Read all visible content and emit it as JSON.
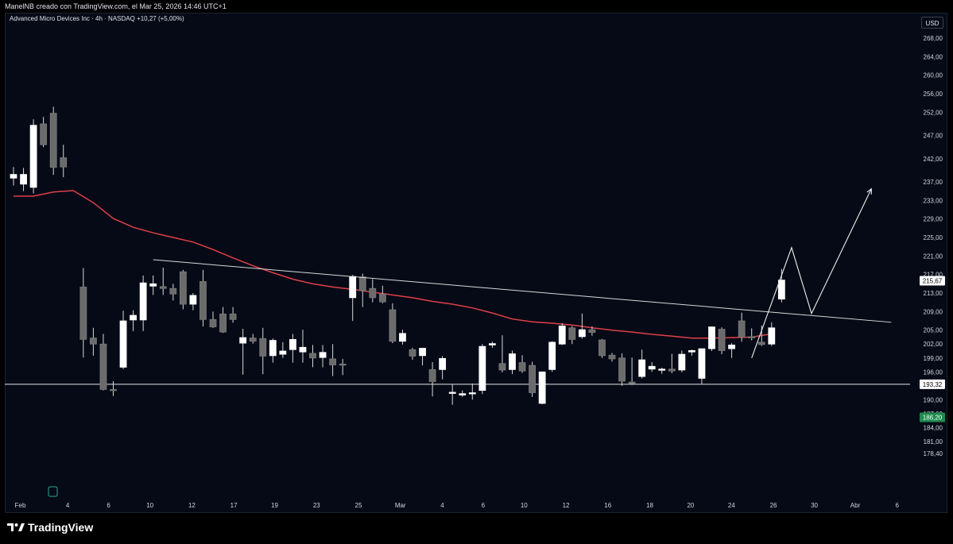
{
  "header": {
    "attribution": "ManelNB creado con TradingView.com, el Mar 25, 2026 14:46 UTC+1",
    "symbol_info": "Advanced Micro Devices Inc · 4h · NASDAQ  +10,27 (+5,00%)",
    "currency": "USD"
  },
  "footer": {
    "brand": "TradingView"
  },
  "colors": {
    "background": "#050a16",
    "bull_body": "#ffffff",
    "bear_body": "#6b6b6b",
    "moving_average": "#e0404a",
    "trendline": "#d9d9d9",
    "price_badge": "#ffffff",
    "last_price_badge": "#1f8a4c"
  },
  "chart_data": {
    "type": "candlestick",
    "y_axis": {
      "ticks": [
        "268,00",
        "264,00",
        "260,00",
        "256,00",
        "252,00",
        "247,00",
        "242,00",
        "237,00",
        "233,00",
        "229,00",
        "225,00",
        "221,00",
        "217,00",
        "213,00",
        "209,00",
        "205,00",
        "202,00",
        "199,00",
        "196,00",
        "193,00",
        "190,00",
        "187,00",
        "184,00",
        "181,00",
        "178,40"
      ],
      "tick_values": [
        268,
        264,
        260,
        256,
        252,
        247,
        242,
        237,
        233,
        229,
        225,
        221,
        217,
        213,
        209,
        205,
        202,
        199,
        196,
        193,
        190,
        187,
        184,
        181,
        178.4
      ],
      "range": [
        177.5,
        271.5
      ]
    },
    "x_axis": {
      "labels": [
        "Feb",
        "4",
        "6",
        "10",
        "12",
        "17",
        "19",
        "23",
        "25",
        "Mar",
        "4",
        "6",
        "10",
        "12",
        "16",
        "18",
        "20",
        "24",
        "26",
        "30",
        "Abr",
        "6"
      ],
      "label_index": [
        1,
        5.75,
        9.85,
        14.0,
        18.2,
        22.4,
        26.5,
        30.7,
        34.9,
        39.1,
        43.3,
        47.4,
        51.5,
        55.7,
        59.9,
        64.1,
        68.2,
        72.3,
        76.5,
        80.6,
        84.7,
        88.9
      ]
    },
    "price_labels": [
      {
        "text": "215,67",
        "value": 215.67,
        "style": "white"
      },
      {
        "text": "193,32",
        "value": 193.32,
        "style": "white"
      },
      {
        "text": "186,20",
        "value": 186.2,
        "style": "green"
      }
    ],
    "horizontal_line": {
      "value": 193.32
    },
    "trendline": {
      "from": [
        14,
        220.2
      ],
      "to": [
        88,
        206.7
      ]
    },
    "projection_path": [
      [
        74,
        199.0
      ],
      [
        78,
        222.8
      ],
      [
        80,
        208.6
      ],
      [
        86,
        235.5
      ]
    ],
    "moving_average": [
      [
        0,
        233.9
      ],
      [
        2,
        233.9
      ],
      [
        4,
        234.8
      ],
      [
        6,
        235.1
      ],
      [
        8,
        232.5
      ],
      [
        10,
        229.1
      ],
      [
        12,
        227.2
      ],
      [
        14,
        226.0
      ],
      [
        16,
        225.0
      ],
      [
        18,
        224.0
      ],
      [
        20,
        222.4
      ],
      [
        22,
        220.6
      ],
      [
        24,
        218.9
      ],
      [
        26,
        217.4
      ],
      [
        28,
        216.0
      ],
      [
        30,
        215.0
      ],
      [
        32,
        214.3
      ],
      [
        34,
        213.8
      ],
      [
        36,
        213.2
      ],
      [
        38,
        212.6
      ],
      [
        40,
        212.0
      ],
      [
        42,
        211.2
      ],
      [
        44,
        210.6
      ],
      [
        46,
        209.8
      ],
      [
        48,
        208.7
      ],
      [
        50,
        207.4
      ],
      [
        52,
        206.8
      ],
      [
        54,
        206.5
      ],
      [
        56,
        206.1
      ],
      [
        58,
        205.5
      ],
      [
        60,
        205.0
      ],
      [
        62,
        204.6
      ],
      [
        64,
        204.1
      ],
      [
        66,
        203.7
      ],
      [
        68,
        203.3
      ],
      [
        70,
        203.3
      ],
      [
        72,
        203.4
      ],
      [
        74,
        203.5
      ],
      [
        76,
        204.2
      ]
    ],
    "candles": [
      {
        "i": 0,
        "o": 237.8,
        "h": 240.2,
        "l": 236.2,
        "c": 238.6
      },
      {
        "i": 1,
        "o": 236.5,
        "h": 240.0,
        "l": 235.0,
        "c": 238.6
      },
      {
        "i": 2,
        "o": 235.8,
        "h": 250.5,
        "l": 234.5,
        "c": 249.2
      },
      {
        "i": 3,
        "o": 249.5,
        "h": 251.0,
        "l": 244.5,
        "c": 245.0
      },
      {
        "i": 4,
        "o": 251.8,
        "h": 253.2,
        "l": 238.5,
        "c": 240.1
      },
      {
        "i": 5,
        "o": 242.2,
        "h": 245.0,
        "l": 238.0,
        "c": 240.2
      },
      {
        "i": 7,
        "o": 214.3,
        "h": 218.4,
        "l": 199.1,
        "c": 203.0
      },
      {
        "i": 8,
        "o": 203.3,
        "h": 205.5,
        "l": 199.5,
        "c": 202.0
      },
      {
        "i": 9,
        "o": 202.0,
        "h": 204.2,
        "l": 192.0,
        "c": 192.2
      },
      {
        "i": 10,
        "o": 192.2,
        "h": 194.0,
        "l": 190.8,
        "c": 192.0
      },
      {
        "i": 11,
        "o": 197.0,
        "h": 209.2,
        "l": 196.6,
        "c": 207.0
      },
      {
        "i": 12,
        "o": 207.2,
        "h": 209.3,
        "l": 204.8,
        "c": 208.2
      },
      {
        "i": 13,
        "o": 207.2,
        "h": 216.8,
        "l": 204.8,
        "c": 215.2
      },
      {
        "i": 14,
        "o": 214.5,
        "h": 216.8,
        "l": 212.6,
        "c": 215.0
      },
      {
        "i": 15,
        "o": 214.4,
        "h": 218.5,
        "l": 212.6,
        "c": 214.0
      },
      {
        "i": 16,
        "o": 214.0,
        "h": 215.0,
        "l": 211.4,
        "c": 212.8
      },
      {
        "i": 17,
        "o": 217.6,
        "h": 218.0,
        "l": 209.5,
        "c": 210.6
      },
      {
        "i": 18,
        "o": 210.6,
        "h": 213.0,
        "l": 209.3,
        "c": 212.5
      },
      {
        "i": 19,
        "o": 215.5,
        "h": 218.0,
        "l": 205.8,
        "c": 207.3
      },
      {
        "i": 20,
        "o": 207.3,
        "h": 209.0,
        "l": 205.5,
        "c": 205.7
      },
      {
        "i": 21,
        "o": 208.5,
        "h": 210.0,
        "l": 204.4,
        "c": 204.6
      },
      {
        "i": 22,
        "o": 208.5,
        "h": 210.0,
        "l": 206.6,
        "c": 207.3
      },
      {
        "i": 23,
        "o": 202.2,
        "h": 205.3,
        "l": 195.4,
        "c": 203.4
      },
      {
        "i": 24,
        "o": 203.3,
        "h": 204.2,
        "l": 202.1,
        "c": 202.6
      },
      {
        "i": 25,
        "o": 203.2,
        "h": 205.5,
        "l": 195.5,
        "c": 199.4
      },
      {
        "i": 26,
        "o": 199.5,
        "h": 203.2,
        "l": 198.0,
        "c": 202.8
      },
      {
        "i": 27,
        "o": 199.8,
        "h": 202.4,
        "l": 199.0,
        "c": 200.5
      },
      {
        "i": 28,
        "o": 200.8,
        "h": 204.2,
        "l": 198.0,
        "c": 203.0
      },
      {
        "i": 29,
        "o": 200.3,
        "h": 205.1,
        "l": 198.0,
        "c": 201.3
      },
      {
        "i": 30,
        "o": 200.0,
        "h": 201.8,
        "l": 197.0,
        "c": 199.0
      },
      {
        "i": 31,
        "o": 199.1,
        "h": 201.8,
        "l": 197.0,
        "c": 200.2
      },
      {
        "i": 32,
        "o": 198.8,
        "h": 202.0,
        "l": 195.1,
        "c": 197.5
      },
      {
        "i": 33,
        "o": 197.7,
        "h": 198.8,
        "l": 195.3,
        "c": 197.6
      },
      {
        "i": 34,
        "o": 212.0,
        "h": 216.9,
        "l": 207.0,
        "c": 216.6
      },
      {
        "i": 35,
        "o": 216.5,
        "h": 217.2,
        "l": 210.0,
        "c": 213.5
      },
      {
        "i": 36,
        "o": 214.0,
        "h": 216.0,
        "l": 211.0,
        "c": 212.0
      },
      {
        "i": 37,
        "o": 212.8,
        "h": 214.6,
        "l": 210.8,
        "c": 211.1
      },
      {
        "i": 38,
        "o": 209.4,
        "h": 210.8,
        "l": 202.2,
        "c": 202.6
      },
      {
        "i": 39,
        "o": 202.6,
        "h": 205.1,
        "l": 201.9,
        "c": 204.3
      },
      {
        "i": 40,
        "o": 200.8,
        "h": 201.2,
        "l": 198.6,
        "c": 199.4
      },
      {
        "i": 41,
        "o": 199.5,
        "h": 200.2,
        "l": 197.4,
        "c": 201.1
      },
      {
        "i": 42,
        "o": 196.5,
        "h": 198.1,
        "l": 190.7,
        "c": 193.9
      },
      {
        "i": 43,
        "o": 196.5,
        "h": 199.4,
        "l": 194.4,
        "c": 198.9
      },
      {
        "i": 44,
        "o": 191.5,
        "h": 193.4,
        "l": 188.9,
        "c": 191.6
      },
      {
        "i": 45,
        "o": 191.0,
        "h": 192.0,
        "l": 190.6,
        "c": 191.3
      },
      {
        "i": 46,
        "o": 191.3,
        "h": 193.5,
        "l": 190.0,
        "c": 191.5
      },
      {
        "i": 47,
        "o": 192.0,
        "h": 202.0,
        "l": 191.2,
        "c": 201.5
      },
      {
        "i": 48,
        "o": 201.8,
        "h": 202.5,
        "l": 201.2,
        "c": 202.1
      },
      {
        "i": 49,
        "o": 197.8,
        "h": 203.9,
        "l": 195.9,
        "c": 196.4
      },
      {
        "i": 50,
        "o": 196.5,
        "h": 200.6,
        "l": 195.5,
        "c": 199.9
      },
      {
        "i": 51,
        "o": 198.0,
        "h": 199.6,
        "l": 195.8,
        "c": 196.2
      },
      {
        "i": 52,
        "o": 197.4,
        "h": 198.2,
        "l": 190.6,
        "c": 191.5
      },
      {
        "i": 53,
        "o": 189.2,
        "h": 196.0,
        "l": 189.0,
        "c": 196.0
      },
      {
        "i": 54,
        "o": 196.5,
        "h": 202.6,
        "l": 196.0,
        "c": 202.4
      },
      {
        "i": 55,
        "o": 202.0,
        "h": 206.5,
        "l": 201.8,
        "c": 205.9
      },
      {
        "i": 56,
        "o": 205.5,
        "h": 205.9,
        "l": 202.0,
        "c": 203.0
      },
      {
        "i": 57,
        "o": 203.6,
        "h": 208.6,
        "l": 203.2,
        "c": 205.1
      },
      {
        "i": 58,
        "o": 205.1,
        "h": 205.8,
        "l": 203.8,
        "c": 204.5
      },
      {
        "i": 59,
        "o": 202.9,
        "h": 203.1,
        "l": 199.0,
        "c": 199.5
      },
      {
        "i": 60,
        "o": 199.6,
        "h": 200.1,
        "l": 198.2,
        "c": 198.8
      },
      {
        "i": 61,
        "o": 199.0,
        "h": 200.0,
        "l": 193.0,
        "c": 194.0
      },
      {
        "i": 62,
        "o": 193.8,
        "h": 199.1,
        "l": 193.2,
        "c": 193.5
      },
      {
        "i": 63,
        "o": 195.0,
        "h": 200.8,
        "l": 194.6,
        "c": 198.6
      },
      {
        "i": 64,
        "o": 196.6,
        "h": 198.1,
        "l": 196.0,
        "c": 197.2
      },
      {
        "i": 65,
        "o": 196.4,
        "h": 196.9,
        "l": 195.6,
        "c": 196.6
      },
      {
        "i": 66,
        "o": 196.6,
        "h": 199.9,
        "l": 195.7,
        "c": 196.2
      },
      {
        "i": 67,
        "o": 196.4,
        "h": 200.6,
        "l": 195.9,
        "c": 199.8
      },
      {
        "i": 68,
        "o": 200.3,
        "h": 200.8,
        "l": 199.5,
        "c": 200.6
      },
      {
        "i": 69,
        "o": 194.6,
        "h": 201.0,
        "l": 193.3,
        "c": 201.0
      },
      {
        "i": 70,
        "o": 201.0,
        "h": 205.8,
        "l": 200.5,
        "c": 205.7
      },
      {
        "i": 71,
        "o": 205.2,
        "h": 205.6,
        "l": 199.8,
        "c": 200.6
      },
      {
        "i": 72,
        "o": 201.0,
        "h": 202.2,
        "l": 199.0,
        "c": 201.8
      },
      {
        "i": 73,
        "o": 207.0,
        "h": 208.8,
        "l": 202.5,
        "c": 203.5
      },
      {
        "i": 74,
        "o": 203.6,
        "h": 205.4,
        "l": 202.8,
        "c": 203.5
      },
      {
        "i": 75,
        "o": 202.4,
        "h": 206.0,
        "l": 201.6,
        "c": 201.9
      },
      {
        "i": 76,
        "o": 202.0,
        "h": 206.7,
        "l": 201.6,
        "c": 205.5
      },
      {
        "i": 77,
        "o": 211.7,
        "h": 218.2,
        "l": 211.0,
        "c": 215.8
      }
    ]
  }
}
